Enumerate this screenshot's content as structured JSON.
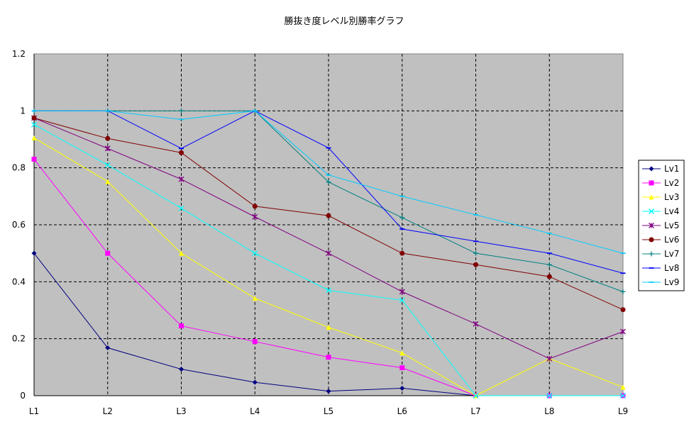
{
  "chart_data": {
    "type": "line",
    "title": "勝抜き度レベル別勝率グラフ",
    "xlabel": "",
    "ylabel": "",
    "categories": [
      "L1",
      "L2",
      "L3",
      "L4",
      "L5",
      "L6",
      "L7",
      "L8",
      "L9"
    ],
    "ylim": [
      0,
      1.2
    ],
    "yticks": [
      0,
      0.2,
      0.4,
      0.6,
      0.8,
      1,
      1.2
    ],
    "grid": true,
    "plot_background": "#c0c0c0",
    "legend_position": "right",
    "series": [
      {
        "name": "Lv1",
        "color": "#000080",
        "marker": "diamond",
        "values": [
          0.5,
          0.168,
          0.093,
          0.047,
          0.016,
          0.026,
          0.0,
          null,
          null
        ]
      },
      {
        "name": "Lv2",
        "color": "#ff00ff",
        "marker": "square",
        "values": [
          0.83,
          0.5,
          0.245,
          0.19,
          0.135,
          0.098,
          0.0,
          0.0,
          0.0
        ]
      },
      {
        "name": "Lv3",
        "color": "#ffff00",
        "marker": "triangle",
        "values": [
          0.905,
          0.752,
          0.5,
          0.342,
          0.24,
          0.15,
          0.0,
          0.13,
          0.03
        ]
      },
      {
        "name": "Lv4",
        "color": "#00ffff",
        "marker": "x",
        "values": [
          0.952,
          0.81,
          0.658,
          0.5,
          0.37,
          0.335,
          0.0,
          0.0,
          0.0
        ]
      },
      {
        "name": "Lv5",
        "color": "#800080",
        "marker": "star",
        "values": [
          0.975,
          0.868,
          0.76,
          0.628,
          0.5,
          0.365,
          0.252,
          0.13,
          0.225
        ]
      },
      {
        "name": "Lv6",
        "color": "#800000",
        "marker": "circle",
        "values": [
          0.975,
          0.903,
          0.853,
          0.665,
          0.632,
          0.5,
          0.46,
          0.418,
          0.302
        ]
      },
      {
        "name": "Lv7",
        "color": "#008080",
        "marker": "plus",
        "values": [
          1.0,
          1.0,
          1.0,
          1.0,
          0.75,
          0.625,
          0.5,
          0.46,
          0.365
        ]
      },
      {
        "name": "Lv8",
        "color": "#0000ff",
        "marker": "dash",
        "values": [
          1.0,
          1.0,
          0.868,
          1.0,
          0.87,
          0.585,
          0.542,
          0.5,
          0.43
        ]
      },
      {
        "name": "Lv9",
        "color": "#00ccff",
        "marker": "dash",
        "values": [
          1.0,
          1.0,
          0.97,
          1.0,
          0.775,
          0.7,
          0.635,
          0.57,
          0.5
        ]
      }
    ]
  }
}
